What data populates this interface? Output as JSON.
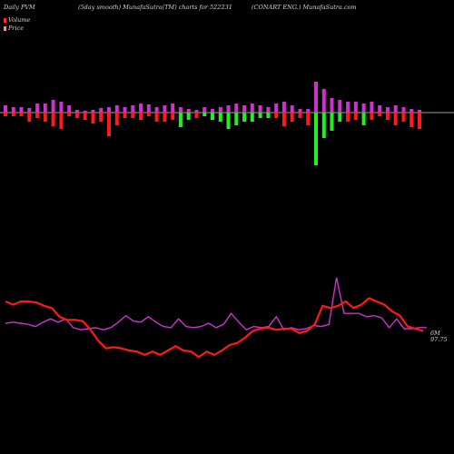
{
  "header": {
    "left": "Daily PVM",
    "middle": "(5day smooth) MunafaSutra(TM) charts for 522231",
    "right": "(CONART ENG.) MunafaSutra.com"
  },
  "legend": [
    {
      "label": "Volume",
      "color": "#ff2a2a"
    },
    {
      "label": "Price",
      "color": "#ff8c8c"
    }
  ],
  "chart_data": {
    "type": "bar+line",
    "volume_bars": {
      "colors": {
        "up_top": "#cc33cc",
        "down_red": "#ff1a1a",
        "down_green": "#22ee22"
      },
      "values": [
        {
          "up": 8,
          "down": 4,
          "c": "red"
        },
        {
          "up": 6,
          "down": 4,
          "c": "red"
        },
        {
          "up": 6,
          "down": 4,
          "c": "red"
        },
        {
          "up": 5,
          "down": 10,
          "c": "red"
        },
        {
          "up": 10,
          "down": 6,
          "c": "red"
        },
        {
          "up": 10,
          "down": 10,
          "c": "red"
        },
        {
          "up": 14,
          "down": 15,
          "c": "red"
        },
        {
          "up": 12,
          "down": 18,
          "c": "red"
        },
        {
          "up": 8,
          "down": 4,
          "c": "red"
        },
        {
          "up": 3,
          "down": 6,
          "c": "red"
        },
        {
          "up": 2,
          "down": 8,
          "c": "red"
        },
        {
          "up": 3,
          "down": 12,
          "c": "red"
        },
        {
          "up": 5,
          "down": 10,
          "c": "red"
        },
        {
          "up": 6,
          "down": 26,
          "c": "red"
        },
        {
          "up": 8,
          "down": 14,
          "c": "red"
        },
        {
          "up": 6,
          "down": 6,
          "c": "red"
        },
        {
          "up": 8,
          "down": 6,
          "c": "red"
        },
        {
          "up": 10,
          "down": 8,
          "c": "red"
        },
        {
          "up": 9,
          "down": 4,
          "c": "red"
        },
        {
          "up": 6,
          "down": 10,
          "c": "red"
        },
        {
          "up": 8,
          "down": 10,
          "c": "red"
        },
        {
          "up": 10,
          "down": 8,
          "c": "red"
        },
        {
          "up": 6,
          "down": 16,
          "c": "green"
        },
        {
          "up": 4,
          "down": 8,
          "c": "green"
        },
        {
          "up": 3,
          "down": 6,
          "c": "red"
        },
        {
          "up": 6,
          "down": 4,
          "c": "green"
        },
        {
          "up": 4,
          "down": 8,
          "c": "green"
        },
        {
          "up": 6,
          "down": 10,
          "c": "green"
        },
        {
          "up": 8,
          "down": 18,
          "c": "green"
        },
        {
          "up": 10,
          "down": 14,
          "c": "green"
        },
        {
          "up": 8,
          "down": 10,
          "c": "green"
        },
        {
          "up": 10,
          "down": 10,
          "c": "green"
        },
        {
          "up": 8,
          "down": 6,
          "c": "green"
        },
        {
          "up": 6,
          "down": 6,
          "c": "green"
        },
        {
          "up": 10,
          "down": 6,
          "c": "red"
        },
        {
          "up": 12,
          "down": 15,
          "c": "red"
        },
        {
          "up": 8,
          "down": 10,
          "c": "red"
        },
        {
          "up": 4,
          "down": 6,
          "c": "red"
        },
        {
          "up": 4,
          "down": 14,
          "c": "red"
        },
        {
          "up": 34,
          "down": 58,
          "c": "green"
        },
        {
          "up": 26,
          "down": 28,
          "c": "green"
        },
        {
          "up": 16,
          "down": 20,
          "c": "green"
        },
        {
          "up": 14,
          "down": 10,
          "c": "green"
        },
        {
          "up": 12,
          "down": 10,
          "c": "red"
        },
        {
          "up": 12,
          "down": 8,
          "c": "red"
        },
        {
          "up": 10,
          "down": 14,
          "c": "green"
        },
        {
          "up": 12,
          "down": 8,
          "c": "red"
        },
        {
          "up": 8,
          "down": 4,
          "c": "red"
        },
        {
          "up": 6,
          "down": 8,
          "c": "red"
        },
        {
          "up": 8,
          "down": 14,
          "c": "red"
        },
        {
          "up": 6,
          "down": 10,
          "c": "red"
        },
        {
          "up": 4,
          "down": 16,
          "c": "red"
        },
        {
          "up": 3,
          "down": 18,
          "c": "red"
        }
      ]
    },
    "volume_line": {
      "color": "#cc33cc",
      "values": [
        95,
        96,
        95,
        94,
        92,
        96,
        99,
        96,
        99,
        91,
        89,
        90,
        91,
        89,
        91,
        96,
        102,
        97,
        96,
        101,
        96,
        92,
        91,
        99,
        92,
        91,
        92,
        95,
        91,
        94,
        104,
        96,
        89,
        92,
        91,
        92,
        101,
        89,
        91,
        89,
        90,
        93,
        92,
        94,
        137,
        104,
        104,
        104,
        101,
        102,
        100,
        91,
        99,
        90,
        90,
        91,
        91
      ]
    },
    "price_line": {
      "color": "#ff1a1a",
      "values": [
        115,
        112,
        115,
        115,
        114,
        111,
        109,
        101,
        98,
        98,
        97,
        89,
        79,
        72,
        73,
        72,
        70,
        69,
        66,
        69,
        66,
        70,
        74,
        70,
        69,
        64,
        69,
        66,
        70,
        75,
        77,
        82,
        88,
        90,
        91,
        89,
        90,
        90,
        86,
        88,
        94,
        111,
        109,
        111,
        115,
        109,
        112,
        118,
        115,
        112,
        106,
        102,
        92,
        90,
        88
      ]
    },
    "end_labels": {
      "volume": "6M",
      "price": "97.75"
    }
  }
}
